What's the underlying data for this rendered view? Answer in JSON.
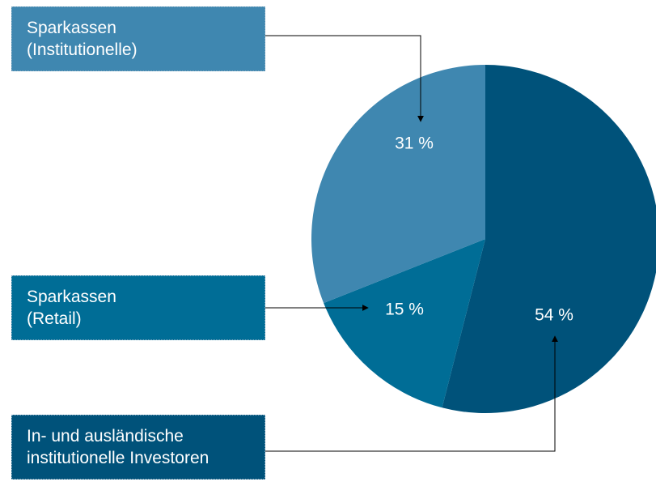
{
  "chart_data": {
    "type": "pie",
    "categories": [
      "In- und ausländische\ninstitutionelle Investoren",
      "Sparkassen\n(Retail)",
      "Sparkassen\n(Institutionelle)"
    ],
    "values": [
      54,
      15,
      31
    ],
    "value_labels": [
      "54 %",
      "15 %",
      "31 %"
    ],
    "colors": [
      "#00527a",
      "#006d96",
      "#3f87b0"
    ]
  }
}
